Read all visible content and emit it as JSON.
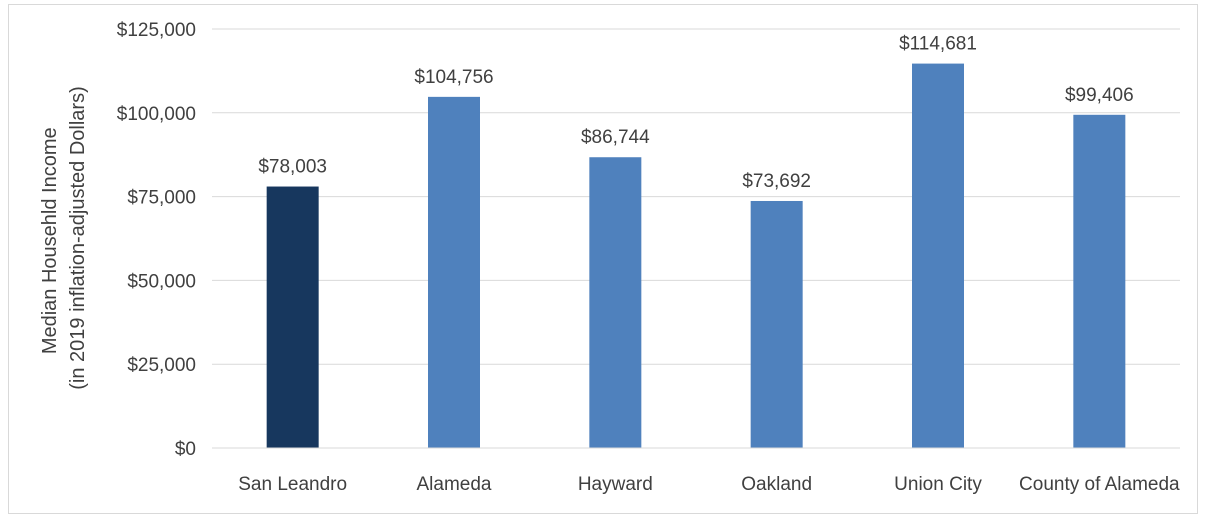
{
  "chart_data": {
    "type": "bar",
    "title": "",
    "xlabel": "",
    "ylabel_lines": [
      "Median Househld Income",
      "(in 2019 inflation-adjusted Dollars)"
    ],
    "categories": [
      "San Leandro",
      "Alameda",
      "Hayward",
      "Oakland",
      "Union City",
      "County of Alameda"
    ],
    "values": [
      78003,
      104756,
      86744,
      73692,
      114681,
      99406
    ],
    "data_labels": [
      "$78,003",
      "$104,756",
      "$86,744",
      "$73,692",
      "$114,681",
      "$99,406"
    ],
    "ylim": [
      0,
      125000
    ],
    "y_ticks": [
      0,
      25000,
      50000,
      75000,
      100000,
      125000
    ],
    "y_tick_labels": [
      "$0",
      "$25,000",
      "$50,000",
      "$75,000",
      "$100,000",
      "$125,000"
    ],
    "grid": true,
    "legend": "none",
    "colors": {
      "highlight": "#17375e",
      "default": "#4f81bd",
      "gridline": "#d9d9d9",
      "text": "#404040"
    },
    "highlight_index": 0
  }
}
